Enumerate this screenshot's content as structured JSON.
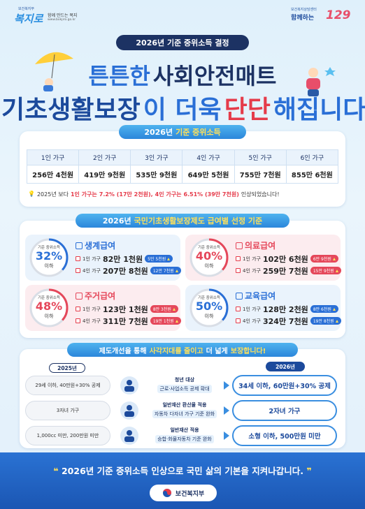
{
  "header": {
    "org_small": "보건복지부",
    "logo": "복지로",
    "tagline": "함께 만드는 복지",
    "url": "www.bokjiro.go.kr",
    "right_small": "보건복지상담센터",
    "right_logo": "함께하는",
    "right_number": "129"
  },
  "badge": "2026년 기준 중위소득 결정",
  "headline": {
    "line1": [
      "튼튼한",
      "사회안전매트"
    ],
    "line2": [
      "기초생활보장",
      "이 더욱",
      "단단",
      "해집니다."
    ]
  },
  "median_income": {
    "title": [
      "2026년",
      "기준 중위소득"
    ],
    "households": [
      "1인 가구",
      "2인 가구",
      "3인 가구",
      "4인 가구",
      "5인 가구",
      "6인 가구"
    ],
    "amounts": [
      "256만 4천원",
      "419만 9천원",
      "535만 9천원",
      "649만 5천원",
      "755만 7천원",
      "855만 6천원"
    ],
    "note": [
      "2025년 보다",
      "1인 가구는",
      "7.2% (17만 2천원),",
      "4인 가구는",
      "6.51% (39만 7천원)",
      "인상되었습니다!"
    ]
  },
  "benefits": {
    "title": [
      "2026년",
      "국민기초생활보장제도 급여별 선정 기준"
    ],
    "cards": [
      {
        "name": "생계급여",
        "criterion": "기준 중위소득",
        "percent": "32%",
        "below": "이하",
        "rows": [
          {
            "household": "1인 가구",
            "amount": "82만 1천원",
            "increase": "5만 5천원"
          },
          {
            "household": "4인 가구",
            "amount": "207만 8천원",
            "increase": "12만 7천원"
          }
        ]
      },
      {
        "name": "의료급여",
        "criterion": "기준 중위소득",
        "percent": "40%",
        "below": "이하",
        "rows": [
          {
            "household": "1인 가구",
            "amount": "102만 6천원",
            "increase": "6만 9천원"
          },
          {
            "household": "4인 가구",
            "amount": "259만 7천원",
            "increase": "15만 9천원"
          }
        ]
      },
      {
        "name": "주거급여",
        "criterion": "기준 중위소득",
        "percent": "48%",
        "below": "이하",
        "rows": [
          {
            "household": "1인 가구",
            "amount": "123만 1천원",
            "increase": "8만 3천원"
          },
          {
            "household": "4인 가구",
            "amount": "311만 7천원",
            "increase": "19만 1천원"
          }
        ]
      },
      {
        "name": "교육급여",
        "criterion": "기준 중위소득",
        "percent": "50%",
        "below": "이하",
        "rows": [
          {
            "household": "1인 가구",
            "amount": "128만 2천원",
            "increase": "8만 6천원"
          },
          {
            "household": "4인 가구",
            "amount": "324만 7천원",
            "increase": "19만 8천원"
          }
        ]
      }
    ]
  },
  "improvements": {
    "title": [
      "제도개선을 통해",
      "사각지대를 줄이고",
      "더 넓게",
      "보장합니다!"
    ],
    "before_label": "2025년",
    "after_label": "2026년",
    "rows": [
      {
        "before": "29세 이하, 40만원+30% 공제",
        "topic": "청년 대상",
        "detail": "근로·사업소득 공제 확대",
        "after": "34세 이하, 60만원+30% 공제"
      },
      {
        "before": "3자녀 가구",
        "topic": "일반재산 환산율 적용",
        "detail": "자동차 다자녀 가구 기준 완화",
        "after": "2자녀 가구"
      },
      {
        "before": "1,000cc 미만, 200만원 미만",
        "topic": "일반재산 적용",
        "detail": "승합·화물자동차 기준 완화",
        "after": "소형 이하, 500만원 미만"
      }
    ]
  },
  "footer": {
    "slogan": "2026년 기준 중위소득 인상으로 국민 삶의 기본을 지켜나갑니다.",
    "ministry": "보건복지부"
  }
}
